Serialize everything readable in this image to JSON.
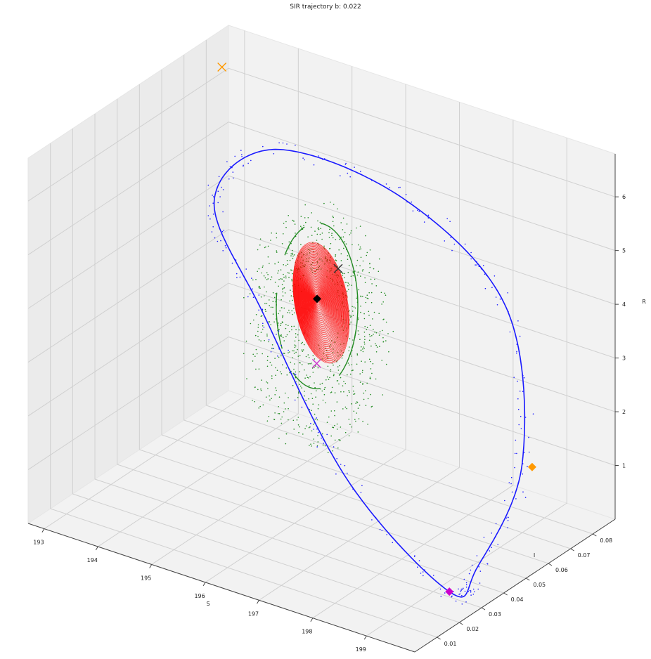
{
  "chart_data": {
    "type": "scatter",
    "title": "SIR trajectory b: 0.022",
    "projection": "3d",
    "xlabel": "S",
    "ylabel": "I",
    "zlabel": "R",
    "xlim": [
      192.7,
      199.9
    ],
    "ylim": [
      0.0,
      0.09
    ],
    "zlim": [
      0.0,
      6.8
    ],
    "xticks": [
      "193",
      "194",
      "195",
      "196",
      "197",
      "198",
      "199"
    ],
    "yticks": [
      "0.01",
      "0.02",
      "0.03",
      "0.04",
      "0.05",
      "0.06",
      "0.07",
      "0.08"
    ],
    "zticks": [
      "1",
      "2",
      "3",
      "4",
      "5",
      "6"
    ],
    "grid": true,
    "series": [
      {
        "kind": "trajectory-loop",
        "color": "#1a1aff",
        "points": [
          [
            199.3,
            0.03,
            0.1
          ],
          [
            197.3,
            0.033,
            1.4
          ],
          [
            195.5,
            0.038,
            3.8
          ],
          [
            194.3,
            0.045,
            5.3
          ],
          [
            194.9,
            0.058,
            6.1
          ],
          [
            196.7,
            0.072,
            5.4
          ],
          [
            198.2,
            0.082,
            3.6
          ],
          [
            199.0,
            0.07,
            1.3
          ],
          [
            199.4,
            0.04,
            0.3
          ],
          [
            199.3,
            0.03,
            0.1
          ]
        ]
      },
      {
        "kind": "spiral-center",
        "color": "#ff0000",
        "center": [
          195.8,
          0.055,
          3.7
        ]
      },
      {
        "kind": "scattered-points",
        "color": "#228b22"
      },
      {
        "kind": "scattered-points",
        "color": "#1a1aff"
      }
    ],
    "markers": [
      {
        "shape": "x",
        "color": "#ff9900",
        "point": [
          193.2,
          0.075,
          6.6
        ]
      },
      {
        "shape": "x",
        "color": "#333333",
        "point": [
          196.4,
          0.05,
          4.6
        ]
      },
      {
        "shape": "x",
        "color": "#cc33cc",
        "point": [
          196.0,
          0.05,
          2.7
        ]
      },
      {
        "shape": "diamond",
        "color": "#000000",
        "point": [
          195.8,
          0.055,
          3.7
        ]
      },
      {
        "shape": "diamond",
        "color": "#ff9900",
        "point": [
          199.1,
          0.072,
          1.2
        ]
      },
      {
        "shape": "diamond",
        "color": "#cc00cc",
        "point": [
          199.3,
          0.03,
          0.1
        ]
      }
    ]
  }
}
